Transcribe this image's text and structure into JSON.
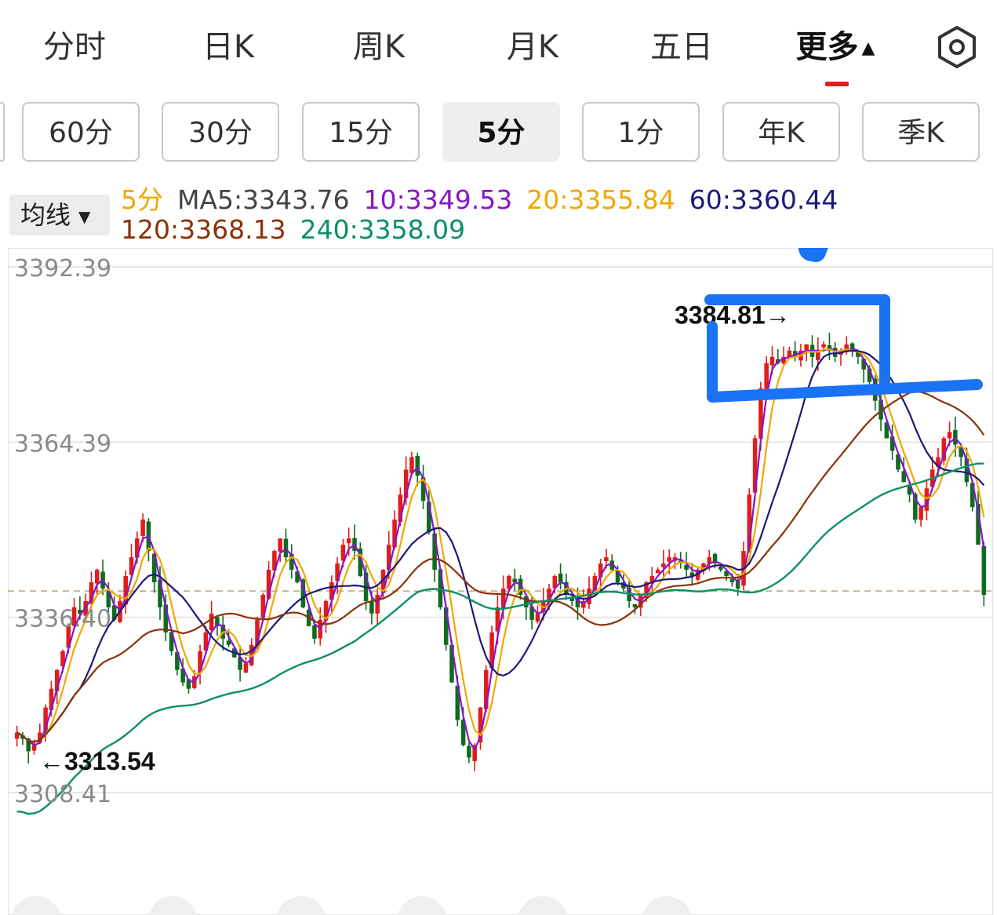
{
  "tabs": [
    {
      "label": "分时"
    },
    {
      "label": "日K"
    },
    {
      "label": "周K"
    },
    {
      "label": "月K"
    },
    {
      "label": "五日"
    },
    {
      "label": "更多"
    }
  ],
  "more_caret": "▲",
  "periods": [
    {
      "label": "60分"
    },
    {
      "label": "30分"
    },
    {
      "label": "15分"
    },
    {
      "label": "5分"
    },
    {
      "label": "1分"
    },
    {
      "label": "年K"
    },
    {
      "label": "季K"
    }
  ],
  "ma_select": {
    "label": "均线",
    "arrow": "▼"
  },
  "legend": {
    "period": "5分",
    "ma5": "MA5:3343.76",
    "ma10": "10:3349.53",
    "ma20": "20:3355.84",
    "ma60": "60:3360.44",
    "ma120": "120:3368.13",
    "ma240": "240:3358.09"
  },
  "colors": {
    "up": "#e01c1c",
    "down": "#0e6b1f",
    "ma5": "#555555",
    "ma10": "#8a14c8",
    "ma20": "#f0a800",
    "ma60": "#1a1a7a",
    "ma120": "#8a3208",
    "ma240": "#0e9060",
    "annotation": "#1a73f5"
  },
  "chart_data": {
    "type": "candlestick",
    "interval": "5分",
    "y_ticks": [
      {
        "label": "3392.39"
      },
      {
        "label": "3364.39"
      },
      {
        "label": "3336.40"
      },
      {
        "label": "3308.41"
      }
    ],
    "ylim": [
      3308.41,
      3392.39
    ],
    "reference_line": 3340.6,
    "high_marker": {
      "value": 3384.81,
      "label": "3384.81→"
    },
    "low_marker": {
      "value": 3313.54,
      "label": "←3313.54"
    },
    "close_series": [
      3318,
      3317,
      3315,
      3316,
      3318,
      3322,
      3325,
      3328,
      3331,
      3335,
      3338,
      3337,
      3339,
      3342,
      3344,
      3341,
      3338,
      3336,
      3339,
      3343,
      3346,
      3349,
      3352,
      3347,
      3342,
      3338,
      3334,
      3331,
      3328,
      3326,
      3325,
      3327,
      3331,
      3334,
      3337,
      3335,
      3333,
      3332,
      3330,
      3328,
      3329,
      3332,
      3336,
      3340,
      3344,
      3347,
      3349,
      3346,
      3344,
      3342,
      3338,
      3335,
      3333,
      3336,
      3339,
      3342,
      3345,
      3348,
      3349,
      3347,
      3343,
      3339,
      3337,
      3340,
      3344,
      3348,
      3352,
      3356,
      3360,
      3362,
      3359,
      3355,
      3350,
      3344,
      3338,
      3332,
      3326,
      3320,
      3316,
      3314,
      3316,
      3322,
      3328,
      3334,
      3338,
      3341,
      3343,
      3342,
      3340,
      3338,
      3336,
      3337,
      3339,
      3341,
      3343,
      3342,
      3340,
      3339,
      3338,
      3339,
      3341,
      3343,
      3345,
      3346,
      3344,
      3342,
      3341,
      3339,
      3338,
      3340,
      3342,
      3343,
      3344,
      3345,
      3346,
      3346,
      3345,
      3344,
      3343,
      3344,
      3345,
      3346,
      3345,
      3344,
      3343,
      3342,
      3341,
      3347,
      3356,
      3365,
      3373,
      3377,
      3378,
      3377,
      3378,
      3379,
      3378,
      3379,
      3380,
      3378,
      3379,
      3380,
      3379,
      3378,
      3379,
      3380,
      3379,
      3378,
      3376,
      3374,
      3371,
      3368,
      3365,
      3363,
      3360,
      3358,
      3356,
      3352,
      3354,
      3357,
      3360,
      3362,
      3365,
      3366,
      3364,
      3362,
      3358,
      3354,
      3348,
      3340
    ]
  },
  "annotation": {
    "kind": "hand-drawn arrow and bracket"
  }
}
